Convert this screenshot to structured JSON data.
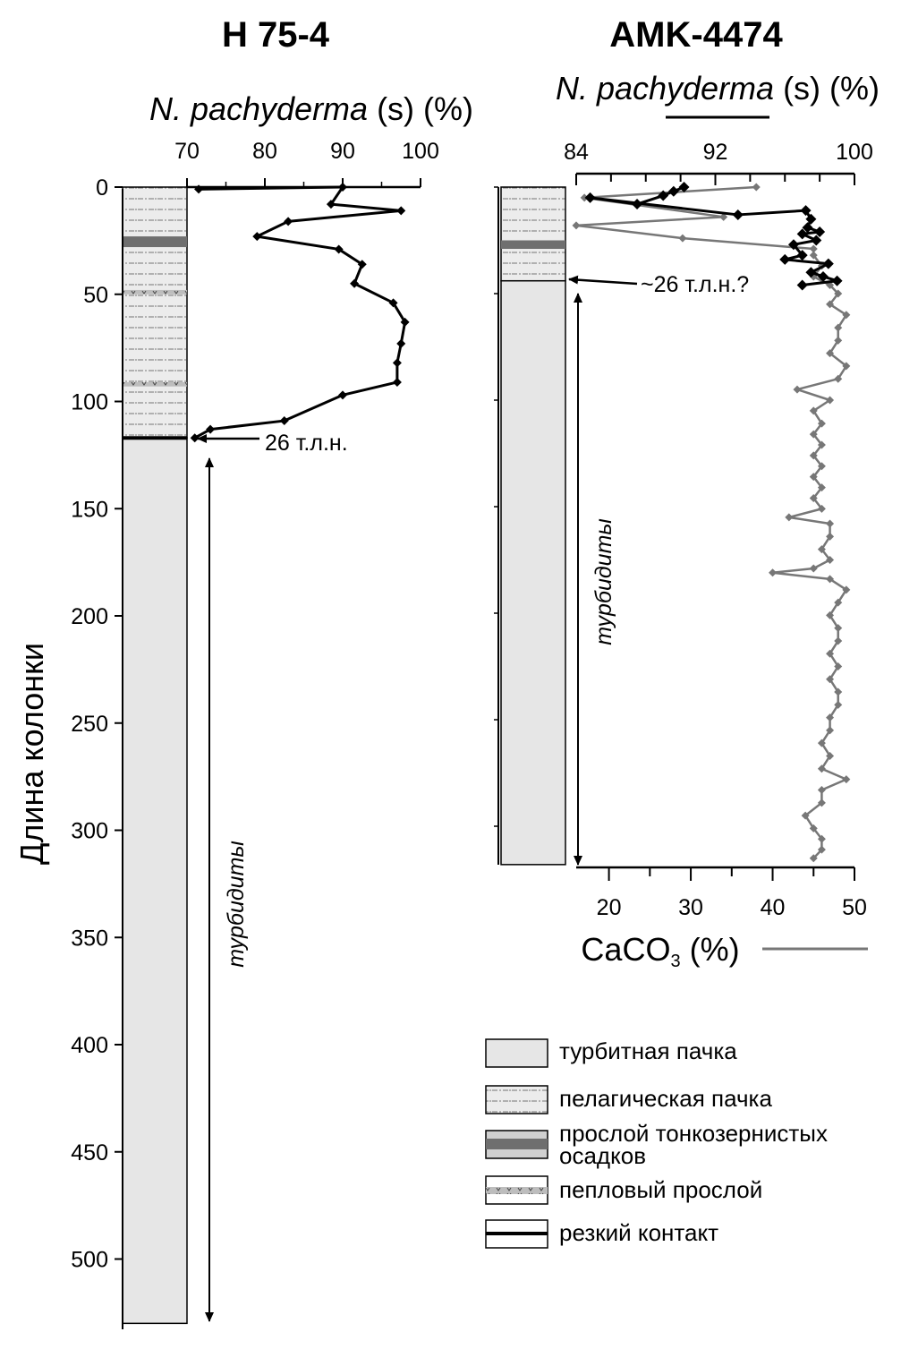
{
  "chart_data": [
    {
      "type": "line",
      "title": "H 75-4",
      "xlabel_italic": "N. pachyderma",
      "xlabel_suffix": " (s) (%)",
      "ylabel": "Длина колонки",
      "xticks": [
        "70",
        "80",
        "90",
        "100"
      ],
      "xlim": [
        70,
        100
      ],
      "yticks": [
        "0",
        "50",
        "100",
        "150",
        "200",
        "250",
        "300",
        "350",
        "400",
        "450",
        "500"
      ],
      "ylim": [
        0,
        530
      ],
      "series": [
        {
          "color": "#000000",
          "points": [
            {
              "x": 71.5,
              "y": 1
            },
            {
              "x": 90,
              "y": 0
            },
            {
              "x": 88.5,
              "y": 8
            },
            {
              "x": 97.5,
              "y": 11
            },
            {
              "x": 83,
              "y": 16
            },
            {
              "x": 79,
              "y": 23
            },
            {
              "x": 89.5,
              "y": 29
            },
            {
              "x": 92.5,
              "y": 36
            },
            {
              "x": 91.5,
              "y": 45
            },
            {
              "x": 96.5,
              "y": 54
            },
            {
              "x": 98,
              "y": 63
            },
            {
              "x": 97.5,
              "y": 73
            },
            {
              "x": 97,
              "y": 82
            },
            {
              "x": 97,
              "y": 91
            },
            {
              "x": 90,
              "y": 97
            },
            {
              "x": 82.5,
              "y": 109
            },
            {
              "x": 73,
              "y": 113
            },
            {
              "x": 71,
              "y": 117
            }
          ]
        }
      ],
      "annotations": {
        "age_label": "26 т.л.н.",
        "turbidites_label": "турбидиты"
      },
      "column_units": [
        {
          "type": "pelagic",
          "from": 0,
          "to": 117
        },
        {
          "type": "fine_grained",
          "from": 23,
          "to": 28
        },
        {
          "type": "ash",
          "from": 48,
          "to": 50
        },
        {
          "type": "ash",
          "from": 91,
          "to": 93
        },
        {
          "type": "sharp_contact",
          "at": 117
        },
        {
          "type": "turbidite",
          "from": 117,
          "to": 530
        }
      ]
    },
    {
      "type": "line",
      "title": "AMK-4474",
      "top_axis": {
        "label_italic": "N. pachyderma",
        "label_suffix": " (s) (%)",
        "ticks": [
          "84",
          "92",
          "100"
        ],
        "lim": [
          84,
          100
        ]
      },
      "bottom_axis": {
        "label_main": "CaCO",
        "label_sub": "3",
        "label_suffix": " (%)",
        "ticks": [
          "20",
          "30",
          "40",
          "50"
        ],
        "lim": [
          16,
          50
        ]
      },
      "ylim": [
        0,
        318
      ],
      "series": [
        {
          "axis": "top",
          "color": "#000000",
          "points": [
            {
              "x": 90.2,
              "y": 0
            },
            {
              "x": 89.6,
              "y": 2
            },
            {
              "x": 89.0,
              "y": 4
            },
            {
              "x": 87.5,
              "y": 8
            },
            {
              "x": 84.8,
              "y": 5
            },
            {
              "x": 93.3,
              "y": 13
            },
            {
              "x": 97.2,
              "y": 11
            },
            {
              "x": 97.5,
              "y": 15
            },
            {
              "x": 97.3,
              "y": 19
            },
            {
              "x": 98.0,
              "y": 21
            },
            {
              "x": 97.0,
              "y": 22
            },
            {
              "x": 97.8,
              "y": 25
            },
            {
              "x": 96.5,
              "y": 27
            },
            {
              "x": 97.0,
              "y": 32
            },
            {
              "x": 96.0,
              "y": 34
            },
            {
              "x": 98.5,
              "y": 36
            },
            {
              "x": 97.5,
              "y": 40
            },
            {
              "x": 98.2,
              "y": 42
            },
            {
              "x": 99.0,
              "y": 44
            },
            {
              "x": 97.0,
              "y": 46
            }
          ]
        },
        {
          "axis": "bottom",
          "color": "#777777",
          "points": [
            {
              "x": 38,
              "y": 0
            },
            {
              "x": 17,
              "y": 5
            },
            {
              "x": 34,
              "y": 14
            },
            {
              "x": 16,
              "y": 18
            },
            {
              "x": 29,
              "y": 24
            },
            {
              "x": 45,
              "y": 29
            },
            {
              "x": 45,
              "y": 32
            },
            {
              "x": 46,
              "y": 37
            },
            {
              "x": 45,
              "y": 42
            },
            {
              "x": 47,
              "y": 46
            },
            {
              "x": 48,
              "y": 50
            },
            {
              "x": 47,
              "y": 55
            },
            {
              "x": 49,
              "y": 60
            },
            {
              "x": 48,
              "y": 66
            },
            {
              "x": 48,
              "y": 72
            },
            {
              "x": 47,
              "y": 78
            },
            {
              "x": 49,
              "y": 84
            },
            {
              "x": 48,
              "y": 90
            },
            {
              "x": 43,
              "y": 95
            },
            {
              "x": 47,
              "y": 100
            },
            {
              "x": 45,
              "y": 105
            },
            {
              "x": 46,
              "y": 111
            },
            {
              "x": 45,
              "y": 116
            },
            {
              "x": 46,
              "y": 121
            },
            {
              "x": 45,
              "y": 126
            },
            {
              "x": 46,
              "y": 131
            },
            {
              "x": 45,
              "y": 136
            },
            {
              "x": 46,
              "y": 141
            },
            {
              "x": 45,
              "y": 146
            },
            {
              "x": 46,
              "y": 151
            },
            {
              "x": 42,
              "y": 155
            },
            {
              "x": 47,
              "y": 158
            },
            {
              "x": 47,
              "y": 164
            },
            {
              "x": 46,
              "y": 170
            },
            {
              "x": 47,
              "y": 175
            },
            {
              "x": 45,
              "y": 179
            },
            {
              "x": 40,
              "y": 181
            },
            {
              "x": 47,
              "y": 184
            },
            {
              "x": 49,
              "y": 189
            },
            {
              "x": 48,
              "y": 195
            },
            {
              "x": 47,
              "y": 201
            },
            {
              "x": 48,
              "y": 207
            },
            {
              "x": 48,
              "y": 213
            },
            {
              "x": 47,
              "y": 219
            },
            {
              "x": 48,
              "y": 225
            },
            {
              "x": 47,
              "y": 231
            },
            {
              "x": 48,
              "y": 237
            },
            {
              "x": 48,
              "y": 243
            },
            {
              "x": 47,
              "y": 249
            },
            {
              "x": 47,
              "y": 255
            },
            {
              "x": 46,
              "y": 261
            },
            {
              "x": 47,
              "y": 267
            },
            {
              "x": 46,
              "y": 273
            },
            {
              "x": 49,
              "y": 278
            },
            {
              "x": 46,
              "y": 283
            },
            {
              "x": 46,
              "y": 289
            },
            {
              "x": 44,
              "y": 295
            },
            {
              "x": 45,
              "y": 301
            },
            {
              "x": 46,
              "y": 306
            },
            {
              "x": 46,
              "y": 311
            },
            {
              "x": 45,
              "y": 315
            }
          ]
        }
      ],
      "annotations": {
        "age_label": "~26 т.л.н.?",
        "turbidites_label": "турбидиты"
      },
      "column_units": [
        {
          "type": "pelagic",
          "from": 0,
          "to": 44
        },
        {
          "type": "fine_grained",
          "from": 25,
          "to": 29
        },
        {
          "type": "turbidite",
          "from": 44,
          "to": 318
        }
      ]
    }
  ],
  "legend": {
    "items": [
      {
        "key": "turbidite",
        "label": "турбитная пачка"
      },
      {
        "key": "pelagic",
        "label": "пелагическая пачка"
      },
      {
        "key": "fine_grained",
        "label_line1": "прослой тонкозернистых",
        "label_line2": "осадков"
      },
      {
        "key": "ash",
        "label": "пепловый прослой"
      },
      {
        "key": "sharp_contact",
        "label": "резкий контакт"
      }
    ]
  },
  "colors": {
    "turbidite_fill": "#e6e6e6",
    "pelagic_fill": "#ececec",
    "fine_grained_fill": "#6f6f6f",
    "ash_fill": "#bdbdbd",
    "caco3_line": "#777777",
    "npach_line": "#000000"
  }
}
